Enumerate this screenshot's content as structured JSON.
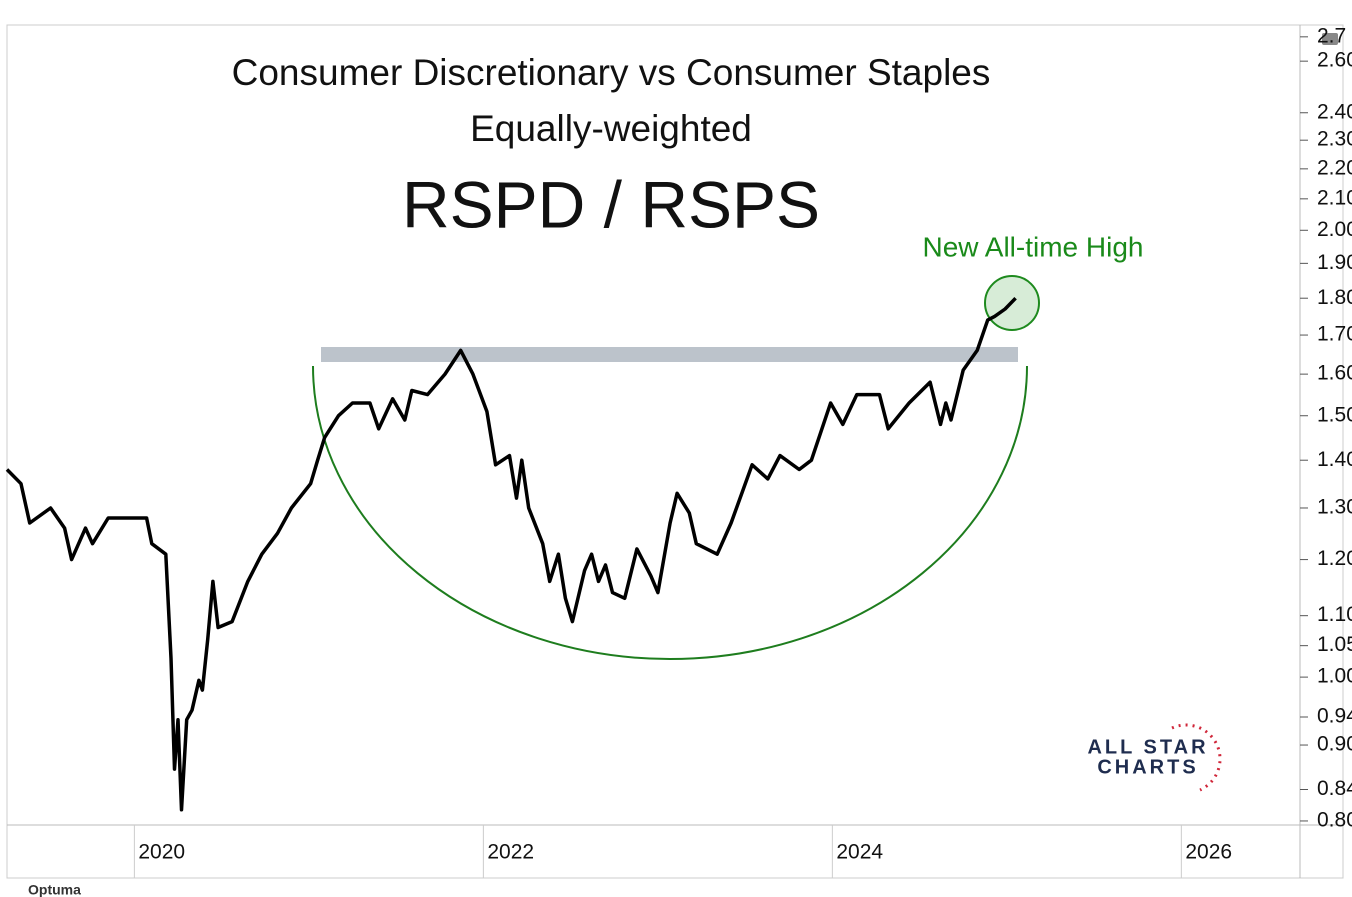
{
  "chart_data": {
    "type": "line",
    "title": "Consumer Discretionary vs Consumer Staples",
    "subtitle": "Equally-weighted",
    "ratio_label": "RSPD / RSPS",
    "annotation": "New All-time High",
    "logo": [
      "ALL STAR",
      "CHARTS"
    ],
    "source": "Optuma",
    "log_scale": true,
    "xlim": [
      2019.27,
      2026.68
    ],
    "xticks": [
      2020,
      2022,
      2024,
      2026
    ],
    "ylim": [
      0.795,
      2.75
    ],
    "yticks": [
      {
        "value": 0.8,
        "label": "0.80"
      },
      0.84,
      {
        "value": 0.9,
        "label": "0.90"
      },
      0.94,
      {
        "value": 1,
        "label": "1.00"
      },
      1.05,
      {
        "value": 1.1,
        "label": "1.10"
      },
      {
        "value": 1.2,
        "label": "1.20"
      },
      {
        "value": 1.3,
        "label": "1.30"
      },
      {
        "value": 1.4,
        "label": "1.40"
      },
      {
        "value": 1.5,
        "label": "1.50"
      },
      {
        "value": 1.6,
        "label": "1.60"
      },
      {
        "value": 1.7,
        "label": "1.70"
      },
      {
        "value": 1.8,
        "label": "1.80"
      },
      {
        "value": 1.9,
        "label": "1.90"
      },
      {
        "value": 2,
        "label": "2.00"
      },
      {
        "value": 2.1,
        "label": "2.10"
      },
      {
        "value": 2.2,
        "label": "2.20"
      },
      {
        "value": 2.3,
        "label": "2.30"
      },
      {
        "value": 2.4,
        "label": "2.40"
      },
      {
        "value": 2.6,
        "label": "2.60"
      },
      2.7
    ],
    "color": "#000000",
    "x": [
      2019.27,
      2019.35,
      2019.4,
      2019.52,
      2019.6,
      2019.64,
      2019.72,
      2019.76,
      2019.85,
      2019.95,
      2020.07,
      2020.1,
      2020.18,
      2020.21,
      2020.23,
      2020.25,
      2020.27,
      2020.3,
      2020.33,
      2020.37,
      2020.39,
      2020.42,
      2020.45,
      2020.48,
      2020.56,
      2020.65,
      2020.73,
      2020.82,
      2020.9,
      2021.01,
      2021.05,
      2021.09,
      2021.17,
      2021.25,
      2021.35,
      2021.4,
      2021.48,
      2021.55,
      2021.59,
      2021.68,
      2021.78,
      2021.87,
      2021.94,
      2022.02,
      2022.07,
      2022.15,
      2022.19,
      2022.22,
      2022.26,
      2022.34,
      2022.38,
      2022.43,
      2022.47,
      2022.51,
      2022.58,
      2022.62,
      2022.66,
      2022.7,
      2022.74,
      2022.81,
      2022.88,
      2022.96,
      2023.0,
      2023.07,
      2023.11,
      2023.18,
      2023.22,
      2023.34,
      2023.42,
      2023.54,
      2023.63,
      2023.7,
      2023.81,
      2023.88,
      2023.99,
      2024.06,
      2024.14,
      2024.27,
      2024.32,
      2024.44,
      2024.56,
      2024.62,
      2024.65,
      2024.68,
      2024.75,
      2024.83,
      2024.89,
      2024.93,
      2024.99,
      2025.05
    ],
    "values": [
      1.38,
      1.35,
      1.27,
      1.3,
      1.26,
      1.2,
      1.26,
      1.23,
      1.28,
      1.28,
      1.28,
      1.23,
      1.21,
      1.03,
      0.867,
      0.936,
      0.814,
      0.936,
      0.95,
      0.995,
      0.98,
      1.06,
      1.16,
      1.08,
      1.09,
      1.16,
      1.21,
      1.25,
      1.3,
      1.35,
      1.4,
      1.45,
      1.5,
      1.53,
      1.53,
      1.47,
      1.54,
      1.49,
      1.56,
      1.55,
      1.6,
      1.66,
      1.6,
      1.51,
      1.39,
      1.41,
      1.32,
      1.4,
      1.3,
      1.23,
      1.16,
      1.21,
      1.13,
      1.09,
      1.18,
      1.21,
      1.16,
      1.19,
      1.14,
      1.13,
      1.22,
      1.17,
      1.14,
      1.27,
      1.33,
      1.29,
      1.23,
      1.21,
      1.27,
      1.39,
      1.36,
      1.41,
      1.38,
      1.4,
      1.53,
      1.48,
      1.55,
      1.55,
      1.47,
      1.53,
      1.58,
      1.48,
      1.53,
      1.49,
      1.61,
      1.66,
      1.74,
      1.75,
      1.77,
      1.8
    ]
  }
}
